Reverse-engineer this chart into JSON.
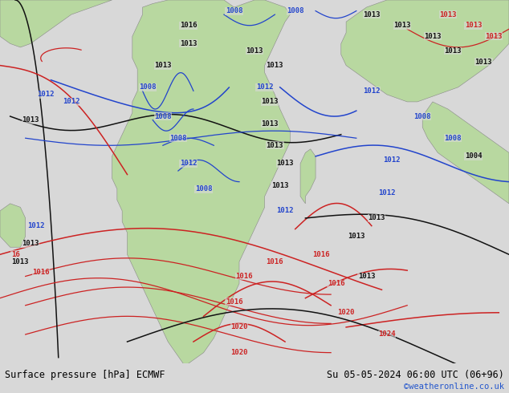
{
  "title_left": "Surface pressure [hPa] ECMWF",
  "title_right": "Su 05-05-2024 06:00 UTC (06+96)",
  "copyright": "©weatheronline.co.uk",
  "ocean_color": "#d8d8d8",
  "land_color": "#b8d8a0",
  "border_color": "#888888",
  "footer_bg": "#d8d8d8",
  "footer_text_color": "#000000",
  "copyright_color": "#2255cc",
  "figsize": [
    6.34,
    4.9
  ],
  "dpi": 100,
  "col_blue": "#2244cc",
  "col_red": "#cc2222",
  "col_black": "#111111",
  "col_gray": "#666666"
}
